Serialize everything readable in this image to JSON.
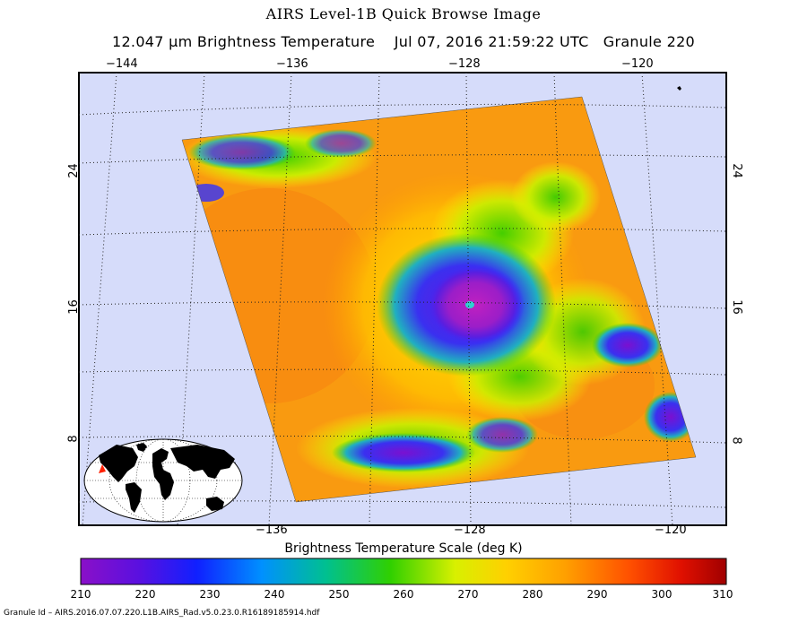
{
  "title": "AIRS Level-1B Quick Browse Image",
  "subtitle": "12.047 μm Brightness Temperature    Jul 07, 2016 21:59:22 UTC   Granule 220",
  "map": {
    "top_lon_ticks": [
      "−144",
      "−136",
      "−128",
      "−120"
    ],
    "bottom_lon_ticks": [
      "−136",
      "−128",
      "−120"
    ],
    "lat_ticks_left": [
      "24",
      "16",
      "8"
    ],
    "lat_ticks_right": [
      "24",
      "16",
      "8"
    ],
    "ocean_color": "#d6dcfa",
    "graticule": "dotted",
    "inset": "world-locator-globe"
  },
  "colorbar": {
    "title": "Brightness Temperature Scale (deg K)",
    "labels": [
      "210",
      "220",
      "230",
      "240",
      "250",
      "260",
      "270",
      "280",
      "290",
      "300",
      "310"
    ],
    "min": 210,
    "max": 310,
    "colors": [
      "#8a10c8",
      "#4a10e8",
      "#0030ff",
      "#00a0ff",
      "#00c090",
      "#30d000",
      "#c8f000",
      "#fff000",
      "#ffa000",
      "#ff5000",
      "#d00000",
      "#a00000"
    ]
  },
  "footer": "Granule Id – AIRS.2016.07.07.220.L1B.AIRS_Rad.v5.0.23.0.R16189185914.hdf"
}
